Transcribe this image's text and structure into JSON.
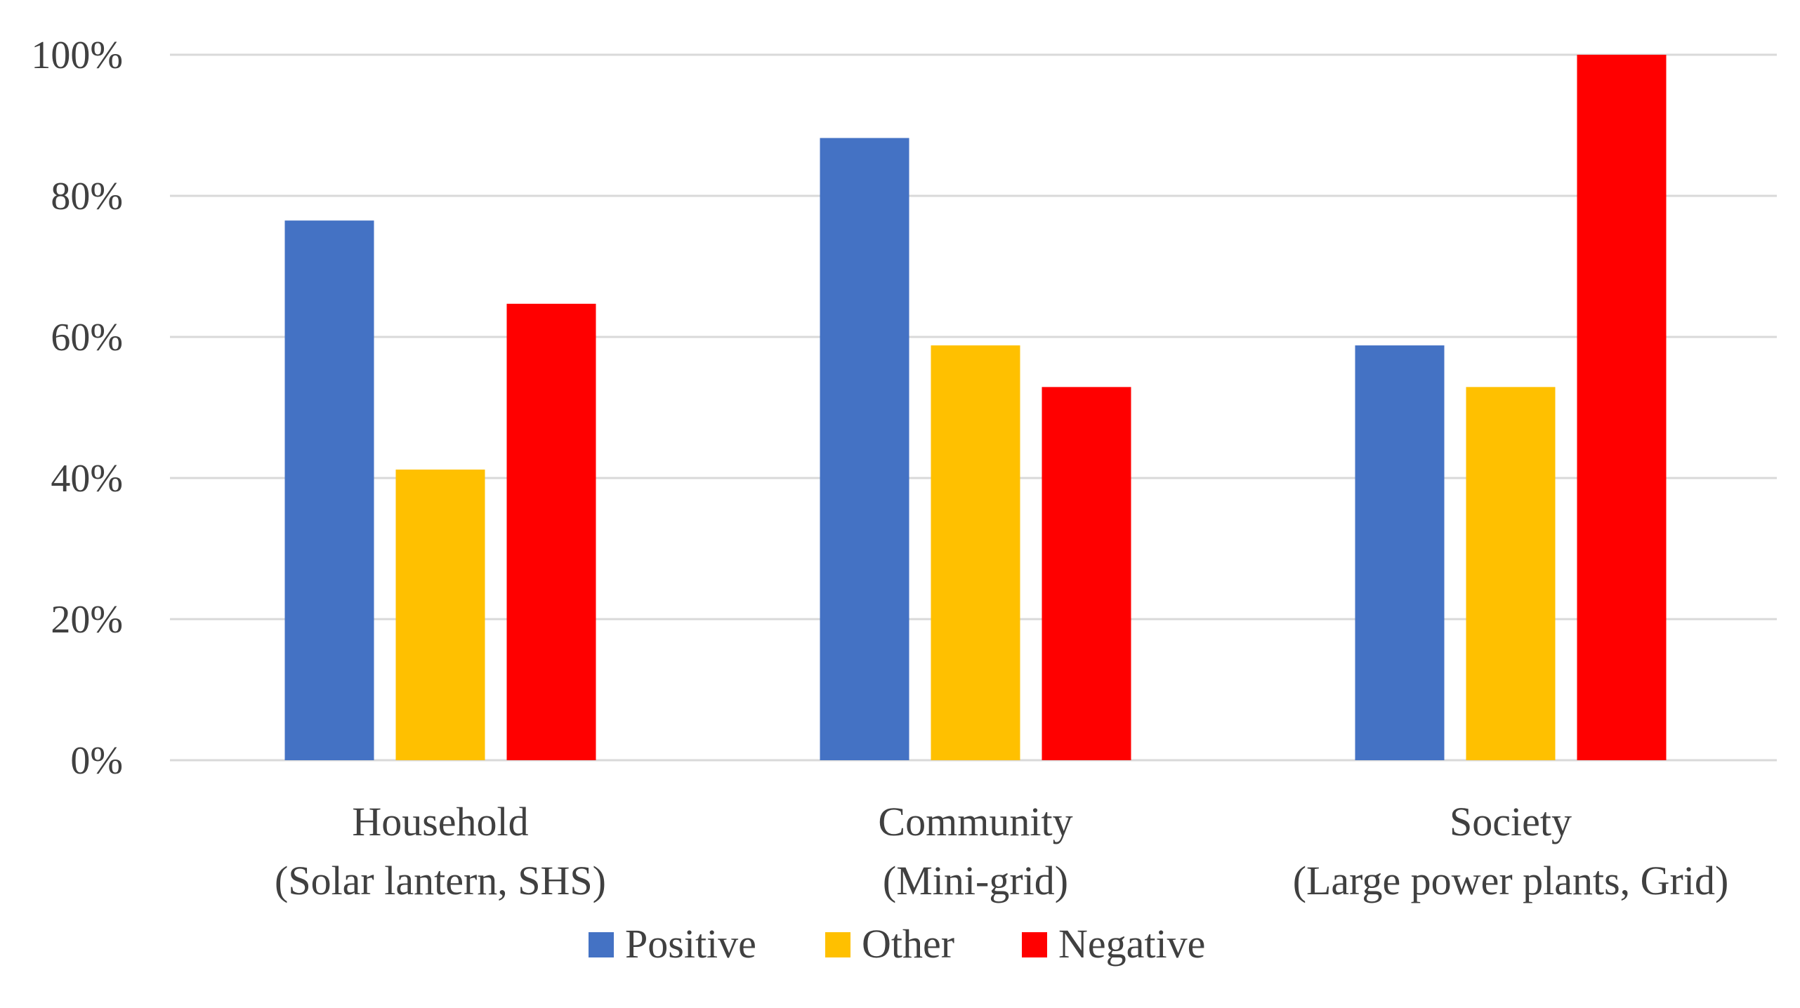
{
  "chart_data": {
    "type": "bar",
    "categories": [
      [
        "Household",
        "(Solar lantern, SHS)"
      ],
      [
        "Community",
        "(Mini-grid)"
      ],
      [
        "Society",
        "(Large power plants, Grid)"
      ]
    ],
    "series": [
      {
        "name": "Positive",
        "color": "#4472c4",
        "values": [
          76.5,
          88.2,
          58.8
        ]
      },
      {
        "name": "Other",
        "color": "#ffc000",
        "values": [
          41.2,
          58.8,
          52.9
        ]
      },
      {
        "name": "Negative",
        "color": "#ff0000",
        "values": [
          64.7,
          52.9,
          100
        ]
      }
    ],
    "yaxis": {
      "min": 0,
      "max": 100,
      "step": 20,
      "tick_labels": [
        "0%",
        "20%",
        "40%",
        "60%",
        "80%",
        "100%"
      ]
    },
    "grid": true,
    "legend_position": "bottom",
    "title": "",
    "xlabel": "",
    "ylabel": ""
  }
}
